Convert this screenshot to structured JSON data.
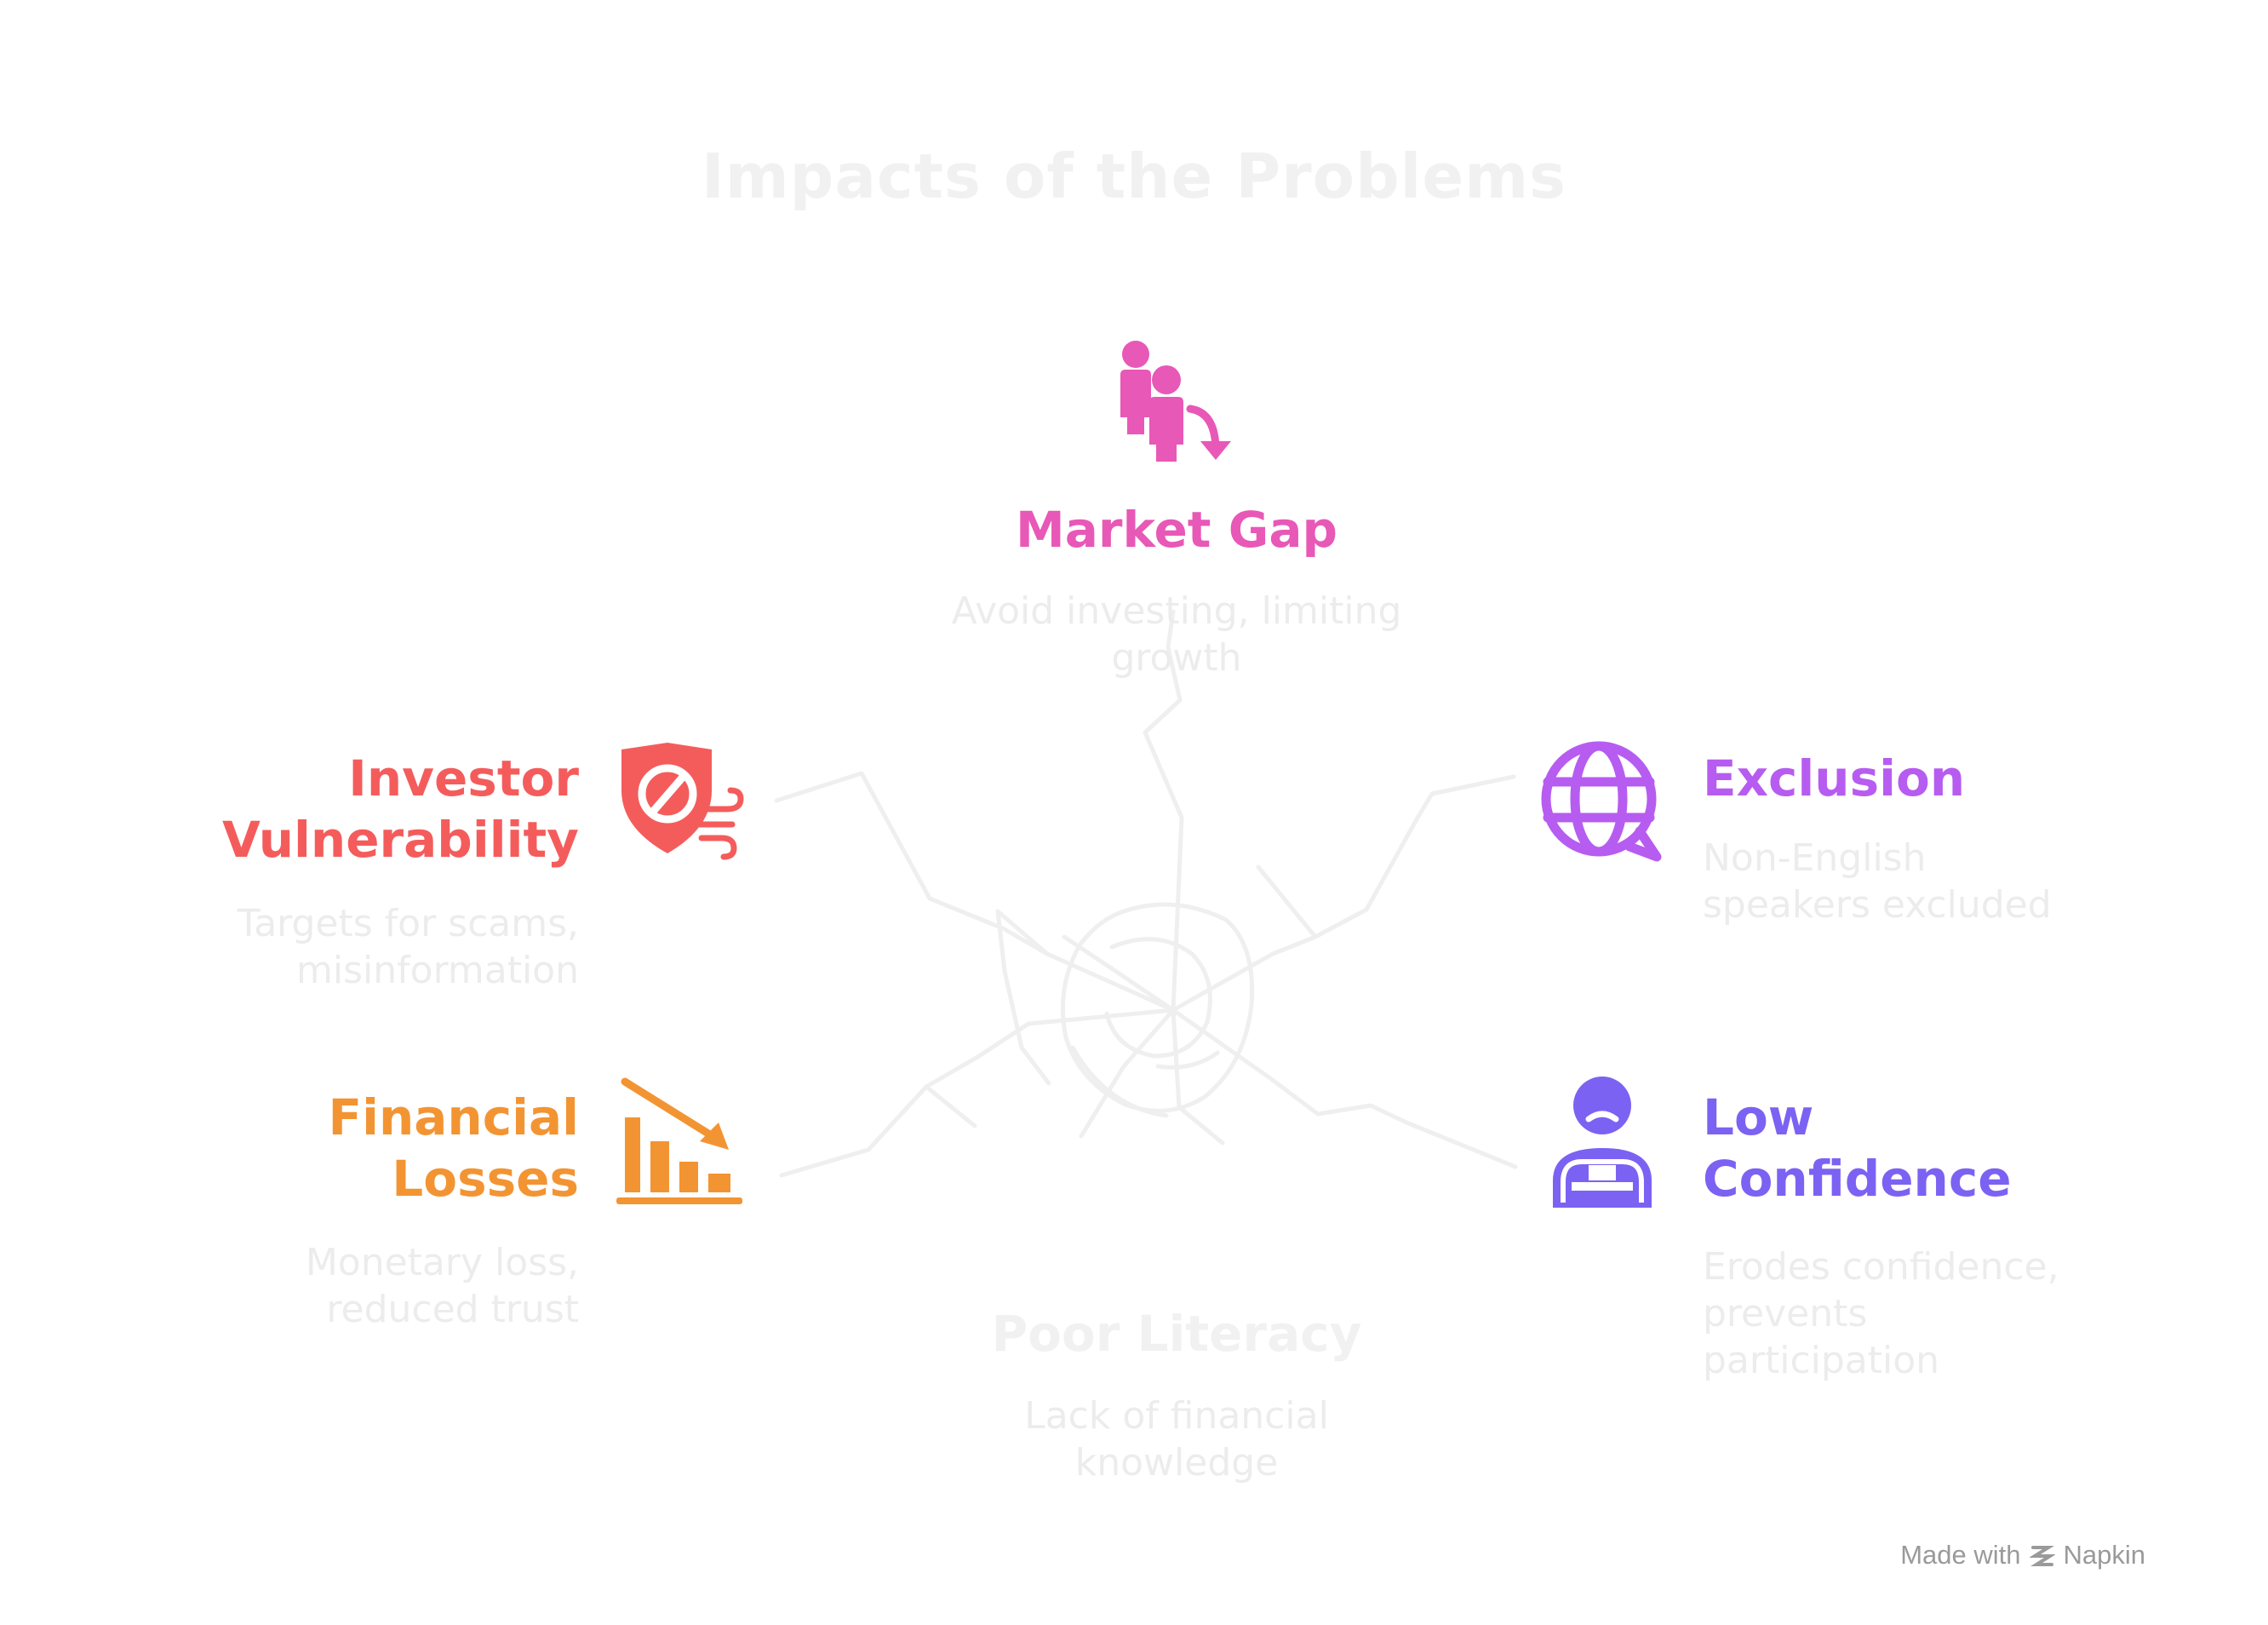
{
  "title": "Impacts of the Problems",
  "colors": {
    "market_gap": "#e858b7",
    "investor": "#f45c5c",
    "exclusion": "#b75cf0",
    "financial": "#f39433",
    "confidence": "#7c62f2",
    "faded_text": "#ececec",
    "web_lines": "#efefef"
  },
  "center": {
    "heading": "Poor Literacy",
    "description": "Lack of financial knowledge"
  },
  "nodes": {
    "market_gap": {
      "heading": "Market Gap",
      "description": "Avoid investing, limiting growth",
      "icon": "people-down-arrow-icon"
    },
    "investor": {
      "heading": "Investor Vulnerability",
      "description": "Targets for scams, misinformation",
      "icon": "shield-wind-icon"
    },
    "exclusion": {
      "heading": "Exclusion",
      "description": "Non-English speakers excluded",
      "icon": "globe-speech-icon"
    },
    "financial": {
      "heading": "Financial Losses",
      "description": "Monetary loss, reduced trust",
      "icon": "bar-chart-decline-icon"
    },
    "confidence": {
      "heading": "Low Confidence",
      "description": "Erodes confidence, prevents participation",
      "icon": "sad-person-icon"
    }
  },
  "footer": {
    "made_with": "Made with",
    "brand": "Napkin"
  }
}
